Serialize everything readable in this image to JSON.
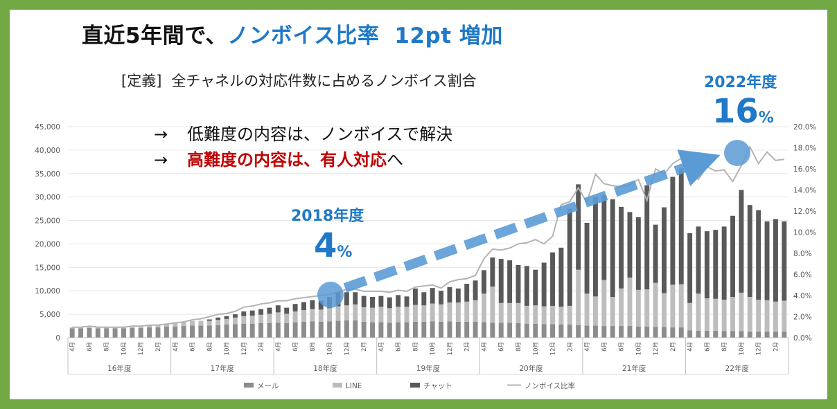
{
  "title": {
    "main": "直近5年間で、",
    "highlight": "ノンボイス比率",
    "increase": "12pt 増加"
  },
  "definition": {
    "prefix": "[定義]",
    "text": "全チャネルの対応件数に占めるノンボイス割合"
  },
  "points": [
    {
      "arrow": "→",
      "text": "低難度の内容は、ノンボイスで解決"
    },
    {
      "arrow": "→",
      "text_red": "高難度の内容は、有人対応",
      "text_suffix": "へ"
    }
  ],
  "callouts": [
    {
      "year": "2018年度",
      "value": "4",
      "unit": "%"
    },
    {
      "year": "2022年度",
      "value": "16",
      "unit": "%"
    }
  ],
  "colors": {
    "frame": "#72a844",
    "accent": "#1f79c8",
    "red": "#c00000",
    "mail": "#8c8c8c",
    "line": "#bdbdbd",
    "chat": "#595959",
    "ratio": "#b3b3b3",
    "marker": "#5b9bd5"
  },
  "chart_data": {
    "type": "bar",
    "stacked": true,
    "left_axis": {
      "min": 0,
      "max": 45000,
      "ticks": [
        "0",
        "5,000",
        "10,000",
        "15,000",
        "20,000",
        "25,000",
        "30,000",
        "35,000",
        "40,000",
        "45,000"
      ]
    },
    "right_axis": {
      "min": 0,
      "max": 20,
      "ticks": [
        "0.0%",
        "2.0%",
        "4.0%",
        "6.0%",
        "8.0%",
        "10.0%",
        "12.0%",
        "14.0%",
        "16.0%",
        "18.0%",
        "20.0%"
      ]
    },
    "month_labels": [
      "4月",
      "6月",
      "8月",
      "10月",
      "12月",
      "2月"
    ],
    "year_labels": [
      "16年度",
      "17年度",
      "18年度",
      "19年度",
      "20年度",
      "21年度",
      "22年度"
    ],
    "months_per_year": 12,
    "legend": [
      "メール",
      "LINE",
      "チャット",
      "ノンボイス比率"
    ],
    "series": [
      {
        "name": "メール",
        "values": [
          2000,
          2000,
          2100,
          2000,
          2000,
          2000,
          2000,
          2100,
          2100,
          2200,
          2200,
          2400,
          2400,
          2500,
          2600,
          2600,
          2600,
          2700,
          2800,
          2900,
          3000,
          3000,
          3100,
          3100,
          3200,
          3100,
          3300,
          3400,
          3500,
          3400,
          3500,
          3600,
          3700,
          3700,
          3400,
          3300,
          3300,
          3200,
          3300,
          3300,
          3400,
          3400,
          3500,
          3400,
          3500,
          3400,
          3400,
          3400,
          3300,
          3200,
          3200,
          3200,
          3100,
          3000,
          3000,
          2900,
          2900,
          2800,
          2800,
          2700,
          2600,
          2600,
          2500,
          2500,
          2500,
          2500,
          2400,
          2400,
          2300,
          2300,
          2200,
          2200,
          1600,
          1500,
          1500,
          1500,
          1400,
          1400,
          1400,
          1300,
          1300,
          1300,
          1300,
          1300
        ]
      },
      {
        "name": "LINE",
        "values": [
          200,
          300,
          300,
          300,
          300,
          300,
          400,
          400,
          400,
          500,
          500,
          600,
          700,
          800,
          1000,
          1000,
          1000,
          1100,
          1200,
          1400,
          1600,
          1700,
          1800,
          2000,
          2200,
          2000,
          2300,
          2500,
          2600,
          2600,
          2800,
          3100,
          3200,
          3400,
          3100,
          3100,
          3300,
          3100,
          3300,
          3300,
          3600,
          3500,
          3800,
          3700,
          4000,
          4100,
          4300,
          4600,
          6100,
          7700,
          4200,
          4200,
          4300,
          3800,
          3900,
          3800,
          3900,
          3800,
          4000,
          11800,
          6800,
          6200,
          9800,
          6200,
          8000,
          10300,
          7800,
          7900,
          9400,
          7200,
          9100,
          9200,
          5800,
          7900,
          6900,
          6800,
          6700,
          7300,
          8200,
          7400,
          6800,
          6700,
          6400,
          6600
        ]
      },
      {
        "name": "チャット",
        "values": [
          0,
          0,
          0,
          0,
          0,
          0,
          0,
          0,
          0,
          0,
          0,
          0,
          0,
          0,
          0,
          0,
          300,
          500,
          600,
          700,
          1000,
          1100,
          1200,
          1300,
          1500,
          1300,
          1600,
          1700,
          1900,
          1900,
          2400,
          3100,
          2800,
          2600,
          2400,
          2300,
          2300,
          2300,
          2500,
          2200,
          3500,
          2800,
          3300,
          2900,
          3300,
          3000,
          3800,
          4200,
          5000,
          6200,
          9400,
          9100,
          8100,
          8500,
          7600,
          9300,
          11400,
          12600,
          20700,
          18200,
          15100,
          21200,
          18100,
          20800,
          17400,
          14000,
          15500,
          22200,
          12400,
          18300,
          23000,
          24700,
          14900,
          14300,
          14300,
          14700,
          15600,
          17300,
          21900,
          19600,
          19100,
          16800,
          17600,
          16900
        ]
      },
      {
        "name": "ノンボイス比率",
        "values": [
          1.0,
          1.0,
          1.1,
          1.0,
          1.0,
          1.0,
          1.0,
          1.1,
          1.1,
          1.2,
          1.2,
          1.3,
          1.4,
          1.5,
          1.7,
          1.8,
          2.0,
          2.2,
          2.3,
          2.5,
          2.9,
          3.0,
          3.2,
          3.3,
          3.5,
          3.5,
          3.7,
          3.8,
          3.9,
          4.0,
          4.1,
          4.3,
          4.6,
          4.6,
          4.4,
          4.4,
          4.4,
          4.3,
          4.5,
          4.4,
          4.8,
          4.9,
          5.0,
          4.7,
          5.3,
          5.5,
          5.6,
          5.9,
          7.5,
          8.4,
          8.3,
          8.5,
          8.9,
          9.0,
          9.3,
          8.9,
          9.6,
          12.6,
          12.9,
          14.2,
          12.8,
          15.5,
          14.6,
          14.4,
          14.3,
          14.5,
          15.0,
          13.0,
          16.0,
          15.5,
          16.5,
          17.0,
          15.6,
          15.0,
          16.2,
          15.8,
          15.9,
          14.8,
          16.3,
          18.1,
          16.5,
          17.6,
          16.8,
          16.9
        ]
      }
    ]
  }
}
